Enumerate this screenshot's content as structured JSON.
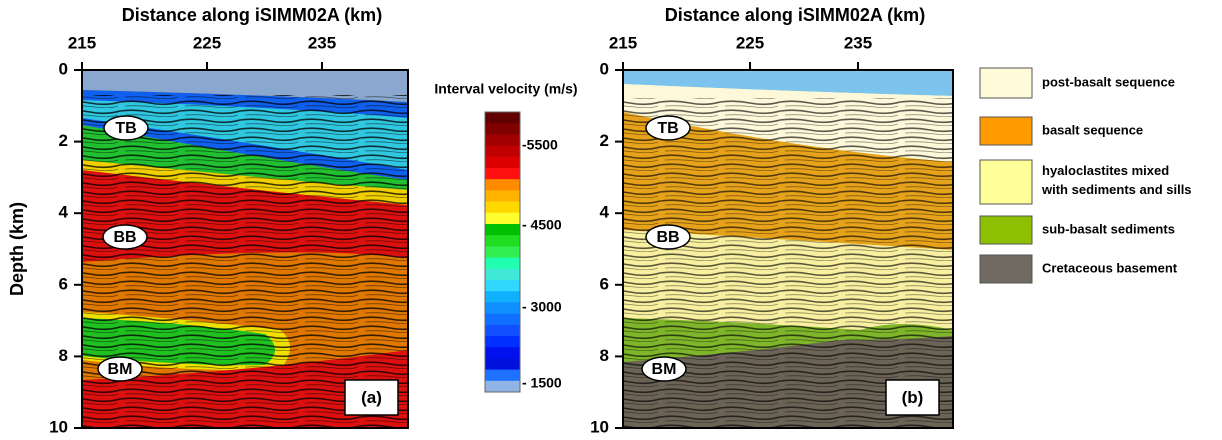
{
  "panels": [
    {
      "x_axis_title": "Distance along iSIMM02A (km)",
      "x_ticks": [
        "215",
        "225",
        "235"
      ],
      "y_ticks": [
        "0",
        "2",
        "4",
        "6",
        "8",
        "10"
      ],
      "horizons": [
        "TB",
        "BB",
        "BM"
      ],
      "label": "(a)"
    },
    {
      "x_axis_title": "Distance along iSIMM02A (km)",
      "x_ticks": [
        "215",
        "225",
        "235"
      ],
      "y_ticks": [
        "0",
        "2",
        "4",
        "6",
        "8",
        "10"
      ],
      "horizons": [
        "TB",
        "BB",
        "BM"
      ],
      "label": "(b)"
    }
  ],
  "y_axis_title": "Depth (km)",
  "colorbar": {
    "title": "Interval velocity (m/s)",
    "ticks": [
      "-5500",
      "- 4500",
      "- 3000",
      "- 1500"
    ]
  },
  "legend": [
    "post-basalt sequence",
    "basalt sequence",
    "hyaloclastites mixed with sediments and sills",
    "sub-basalt sediments",
    "Cretaceous basement"
  ]
}
